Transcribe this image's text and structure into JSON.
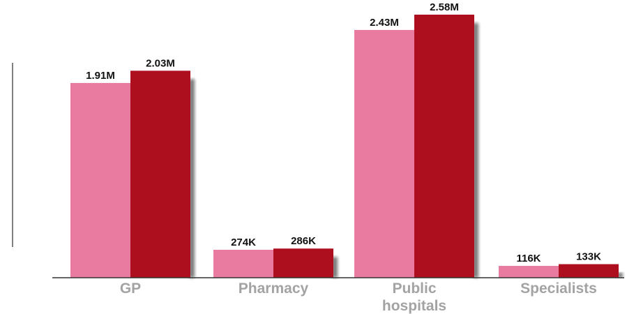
{
  "chart_data": {
    "type": "bar",
    "categories": [
      [
        "GP"
      ],
      [
        "Pharmacy"
      ],
      [
        "Public",
        "hospitals"
      ],
      [
        "Specialists"
      ]
    ],
    "series": [
      {
        "color": "#e87b9f",
        "values": [
          1910000,
          274000,
          2430000,
          116000
        ],
        "labels": [
          "1.91M",
          "274K",
          "2.43M",
          "116K"
        ]
      },
      {
        "color": "#ad0f1f",
        "values": [
          2030000,
          286000,
          2580000,
          133000
        ],
        "labels": [
          "2.03M",
          "286K",
          "2.58M",
          "133K"
        ]
      }
    ],
    "ylim": [
      0,
      2580000
    ],
    "grid": false,
    "legend": "none"
  }
}
